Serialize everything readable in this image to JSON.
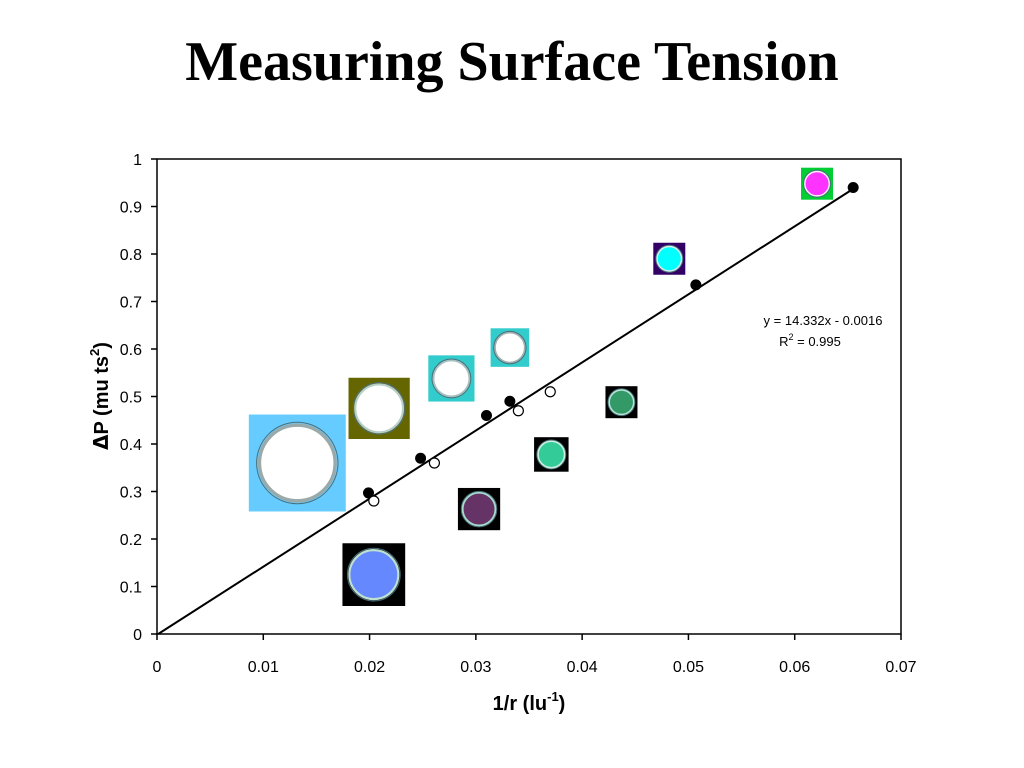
{
  "slide": {
    "title": "Measuring Surface Tension"
  },
  "chart_data": {
    "type": "scatter",
    "xlabel_main": "1/r (lu",
    "xlabel_sup": "-1",
    "xlabel_tail": ")",
    "ylabel_delta": "Δ",
    "ylabel_main": "P (mu ts",
    "ylabel_sup": "2",
    "ylabel_tail": ")",
    "xlim": [
      0,
      0.07
    ],
    "ylim": [
      0,
      1
    ],
    "xticks": [
      0,
      0.01,
      0.02,
      0.03,
      0.04,
      0.05,
      0.06,
      0.07
    ],
    "xtick_labels": [
      "0",
      "0.01",
      "0.02",
      "0.03",
      "0.04",
      "0.05",
      "0.06",
      "0.07"
    ],
    "yticks": [
      0,
      0.1,
      0.2,
      0.3,
      0.4,
      0.5,
      0.6,
      0.7,
      0.8,
      0.9,
      1
    ],
    "ytick_labels": [
      "0",
      "0.1",
      "0.2",
      "0.3",
      "0.4",
      "0.5",
      "0.6",
      "0.7",
      "0.8",
      "0.9",
      "1"
    ],
    "grid": false,
    "series": [
      {
        "marker": "filled-circle",
        "x": [
          0.0199,
          0.0248,
          0.031,
          0.0332,
          0.0507,
          0.0655
        ],
        "y": [
          0.297,
          0.37,
          0.46,
          0.49,
          0.735,
          0.94
        ]
      },
      {
        "marker": "open-circle",
        "x": [
          0.0204,
          0.0261,
          0.034,
          0.037
        ],
        "y": [
          0.28,
          0.36,
          0.47,
          0.51
        ]
      }
    ],
    "fit": {
      "slope": 14.332,
      "intercept": -0.0016,
      "x_range": [
        0,
        0.0655
      ]
    },
    "annotation": {
      "equation": "y = 14.332x - 0.0016",
      "r2_main": "R",
      "r2_sup": "2",
      "r2_value": " = 0.995"
    },
    "droplet_images": [
      {
        "x": 0.0204,
        "y": 0.125,
        "bg": "#000000",
        "fill": "#6688ff",
        "rim": "#bde0d0"
      },
      {
        "x": 0.0303,
        "y": 0.263,
        "bg": "#000000",
        "fill": "#663366",
        "rim": "#a6dccc"
      },
      {
        "x": 0.0371,
        "y": 0.378,
        "bg": "#000000",
        "fill": "#33cc99",
        "rim": "#d0f0e0"
      },
      {
        "x": 0.0437,
        "y": 0.488,
        "bg": "#000000",
        "fill": "#339966",
        "rim": "#b6e6d6"
      },
      {
        "x": 0.0132,
        "y": 0.36,
        "bg": "#66ccff",
        "fill": "#ffffff",
        "rim": "#9aa9a9"
      },
      {
        "x": 0.0209,
        "y": 0.475,
        "bg": "#666600",
        "fill": "#ffffff",
        "rim": "#b7cfc8"
      },
      {
        "x": 0.0277,
        "y": 0.538,
        "bg": "#33cccc",
        "fill": "#ffffff",
        "rim": "#a6bfbf"
      },
      {
        "x": 0.0332,
        "y": 0.603,
        "bg": "#33cccc",
        "fill": "#ffffff",
        "rim": "#9fb2b2"
      },
      {
        "x": 0.0482,
        "y": 0.79,
        "bg": "#330066",
        "fill": "#00ffff",
        "rim": "#d8f0f0"
      },
      {
        "x": 0.0621,
        "y": 0.948,
        "bg": "#00cc33",
        "fill": "#ff33ff",
        "rim": "#f3f3f3"
      }
    ]
  }
}
